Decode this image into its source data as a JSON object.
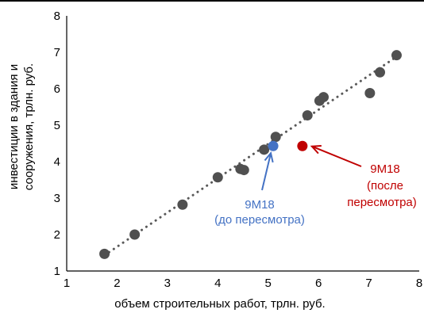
{
  "chart_data": {
    "type": "scatter",
    "title": "",
    "xlabel": "объем строительных работ, трлн. руб.",
    "ylabel_lines": [
      "инвестиции в здания и",
      "сооружения, трлн. руб."
    ],
    "xlim": [
      1,
      8
    ],
    "ylim": [
      1,
      8
    ],
    "xticks": [
      "1",
      "2",
      "3",
      "4",
      "5",
      "6",
      "7",
      "8"
    ],
    "yticks": [
      "1",
      "2",
      "3",
      "4",
      "5",
      "6",
      "7",
      "8"
    ],
    "grid": false,
    "legend": "none",
    "trendline": {
      "style": "dotted",
      "x_from": 1.75,
      "x_to": 7.55,
      "y_from": 1.43,
      "y_to": 6.88,
      "color": "#595959"
    },
    "series": [
      {
        "color": "#505050",
        "points": [
          {
            "x": 1.75,
            "y": 1.47
          },
          {
            "x": 2.35,
            "y": 2.0
          },
          {
            "x": 3.3,
            "y": 2.82
          },
          {
            "x": 4.0,
            "y": 3.57
          },
          {
            "x": 4.45,
            "y": 3.8
          },
          {
            "x": 4.52,
            "y": 3.77
          },
          {
            "x": 4.92,
            "y": 4.33
          },
          {
            "x": 5.15,
            "y": 4.68
          },
          {
            "x": 5.78,
            "y": 5.27
          },
          {
            "x": 6.02,
            "y": 5.67
          },
          {
            "x": 6.1,
            "y": 5.77
          },
          {
            "x": 7.02,
            "y": 5.88
          },
          {
            "x": 7.22,
            "y": 6.45
          },
          {
            "x": 7.55,
            "y": 6.92
          }
        ]
      },
      {
        "color": "#4472c4",
        "points": [
          {
            "x": 5.1,
            "y": 4.43
          }
        ]
      },
      {
        "color": "#c00000",
        "points": [
          {
            "x": 5.68,
            "y": 4.43
          }
        ]
      }
    ],
    "annotations": [
      {
        "lines": [
          "9M18",
          "(до пересмотра)"
        ],
        "color": "#4472c4",
        "target": {
          "x": 5.1,
          "y": 4.43
        }
      },
      {
        "lines": [
          "9M18",
          "(после",
          "пересмотра)"
        ],
        "color": "#c00000",
        "target": {
          "x": 5.68,
          "y": 4.43
        }
      }
    ]
  }
}
